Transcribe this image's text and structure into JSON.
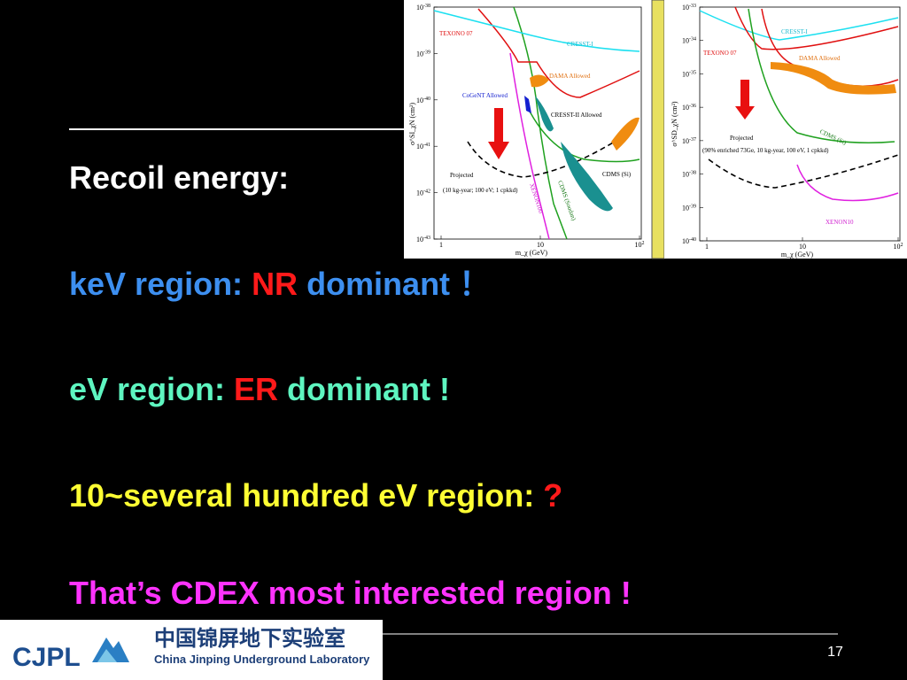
{
  "slide": {
    "lines": [
      [
        "Recoil energy:"
      ],
      [
        "keV region: ",
        "NR",
        " dominant ！"
      ],
      [
        "eV region: ",
        "ER",
        " dominant !"
      ],
      [
        "10~several hundred eV region: ",
        "?"
      ],
      [
        "That’s CDEX most interested region !"
      ]
    ],
    "page_number": "17",
    "logo": {
      "mark": "CJPL",
      "name_cn": "中国锦屏地下实验室",
      "name_en": "China Jinping Underground Laboratory"
    }
  },
  "figures": [
    {
      "y_label": "σ^SI_χN (cm²)",
      "x_label": "m_χ (GeV)",
      "yticks": [
        {
          "base": "10",
          "exp": "-38"
        },
        {
          "base": "10",
          "exp": "-39"
        },
        {
          "base": "10",
          "exp": "-40"
        },
        {
          "base": "10",
          "exp": "-41"
        },
        {
          "base": "10",
          "exp": "-42"
        },
        {
          "base": "10",
          "exp": "-43"
        }
      ],
      "xticks": [
        {
          "base": "1",
          "exp": ""
        },
        {
          "base": "10",
          "exp": ""
        },
        {
          "base": "10",
          "exp": "2"
        }
      ],
      "labels": [
        "TEXONO 07",
        "CRESST-I",
        "DAMA Allowed",
        "CoGeNT Allowed",
        "CRESST-II Allowed",
        "CDMS (Si)",
        "CDMS (Soudan)",
        "XENON100",
        "Projected",
        "(10 kg-year; 100 eV; 1 cpkkd)"
      ]
    },
    {
      "y_label": "σ^SD_χN (cm²)",
      "x_label": "m_χ (GeV)",
      "yticks": [
        {
          "base": "10",
          "exp": "-33"
        },
        {
          "base": "10",
          "exp": "-34"
        },
        {
          "base": "10",
          "exp": "-35"
        },
        {
          "base": "10",
          "exp": "-36"
        },
        {
          "base": "10",
          "exp": "-37"
        },
        {
          "base": "10",
          "exp": "-38"
        },
        {
          "base": "10",
          "exp": "-39"
        },
        {
          "base": "10",
          "exp": "-40"
        }
      ],
      "xticks": [
        {
          "base": "1",
          "exp": ""
        },
        {
          "base": "10",
          "exp": ""
        },
        {
          "base": "10",
          "exp": "2"
        }
      ],
      "labels": [
        "CRESST-I",
        "TEXONO 07",
        "DAMA Allowed",
        "CDMS (Si)",
        "Projected",
        "(90% enriched 73Ge, 10 kg-year, 100 eV, 1 cpkkd)",
        "XENON10"
      ]
    }
  ]
}
